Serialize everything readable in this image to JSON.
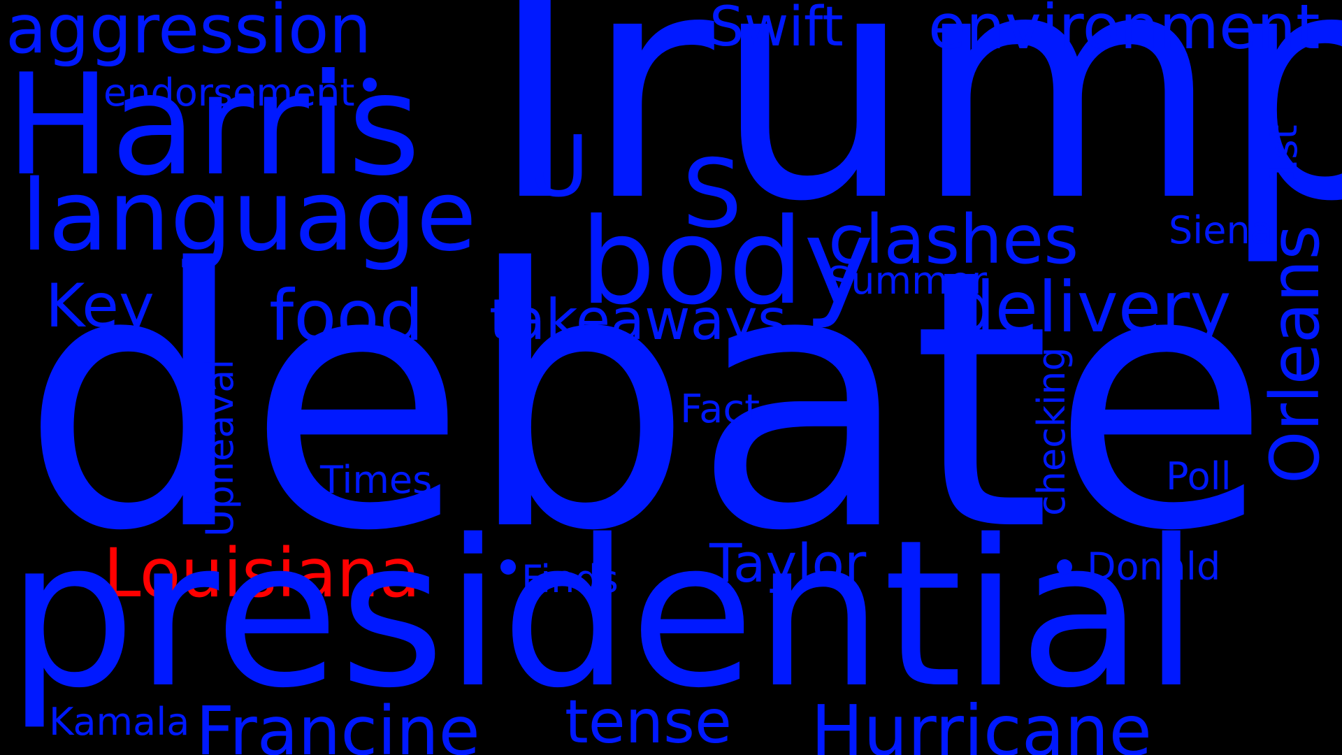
{
  "colors": {
    "background": "#000000",
    "primary": "#0019ff",
    "accent": "#ff0000"
  },
  "words": {
    "debate": "debate",
    "trump": "Trump",
    "presidential": "presidential",
    "harris": "Harris",
    "aggression": "aggression",
    "language": "language",
    "body": "body",
    "s": "S",
    "u": "U",
    "environment": "environment",
    "swift": "Swift",
    "endorsement": "endorsement",
    "clashes": "clashes",
    "delivery": "delivery",
    "orleans": "Orleans",
    "first": "1st",
    "siena": "Siena",
    "summer": "Summer",
    "key": "Key",
    "food": "food",
    "takeaways": "takeaways",
    "fact": "Fact",
    "checking": "checking",
    "upheaval": "Upheaval",
    "times": "Times",
    "poll": "Poll",
    "louisiana": "Louisiana",
    "finds": "Finds",
    "taylor": "Taylor",
    "donald": "Donald",
    "kamala": "Kamala",
    "francine": "Francine",
    "tense": "tense",
    "hurricane": "Hurricane"
  }
}
